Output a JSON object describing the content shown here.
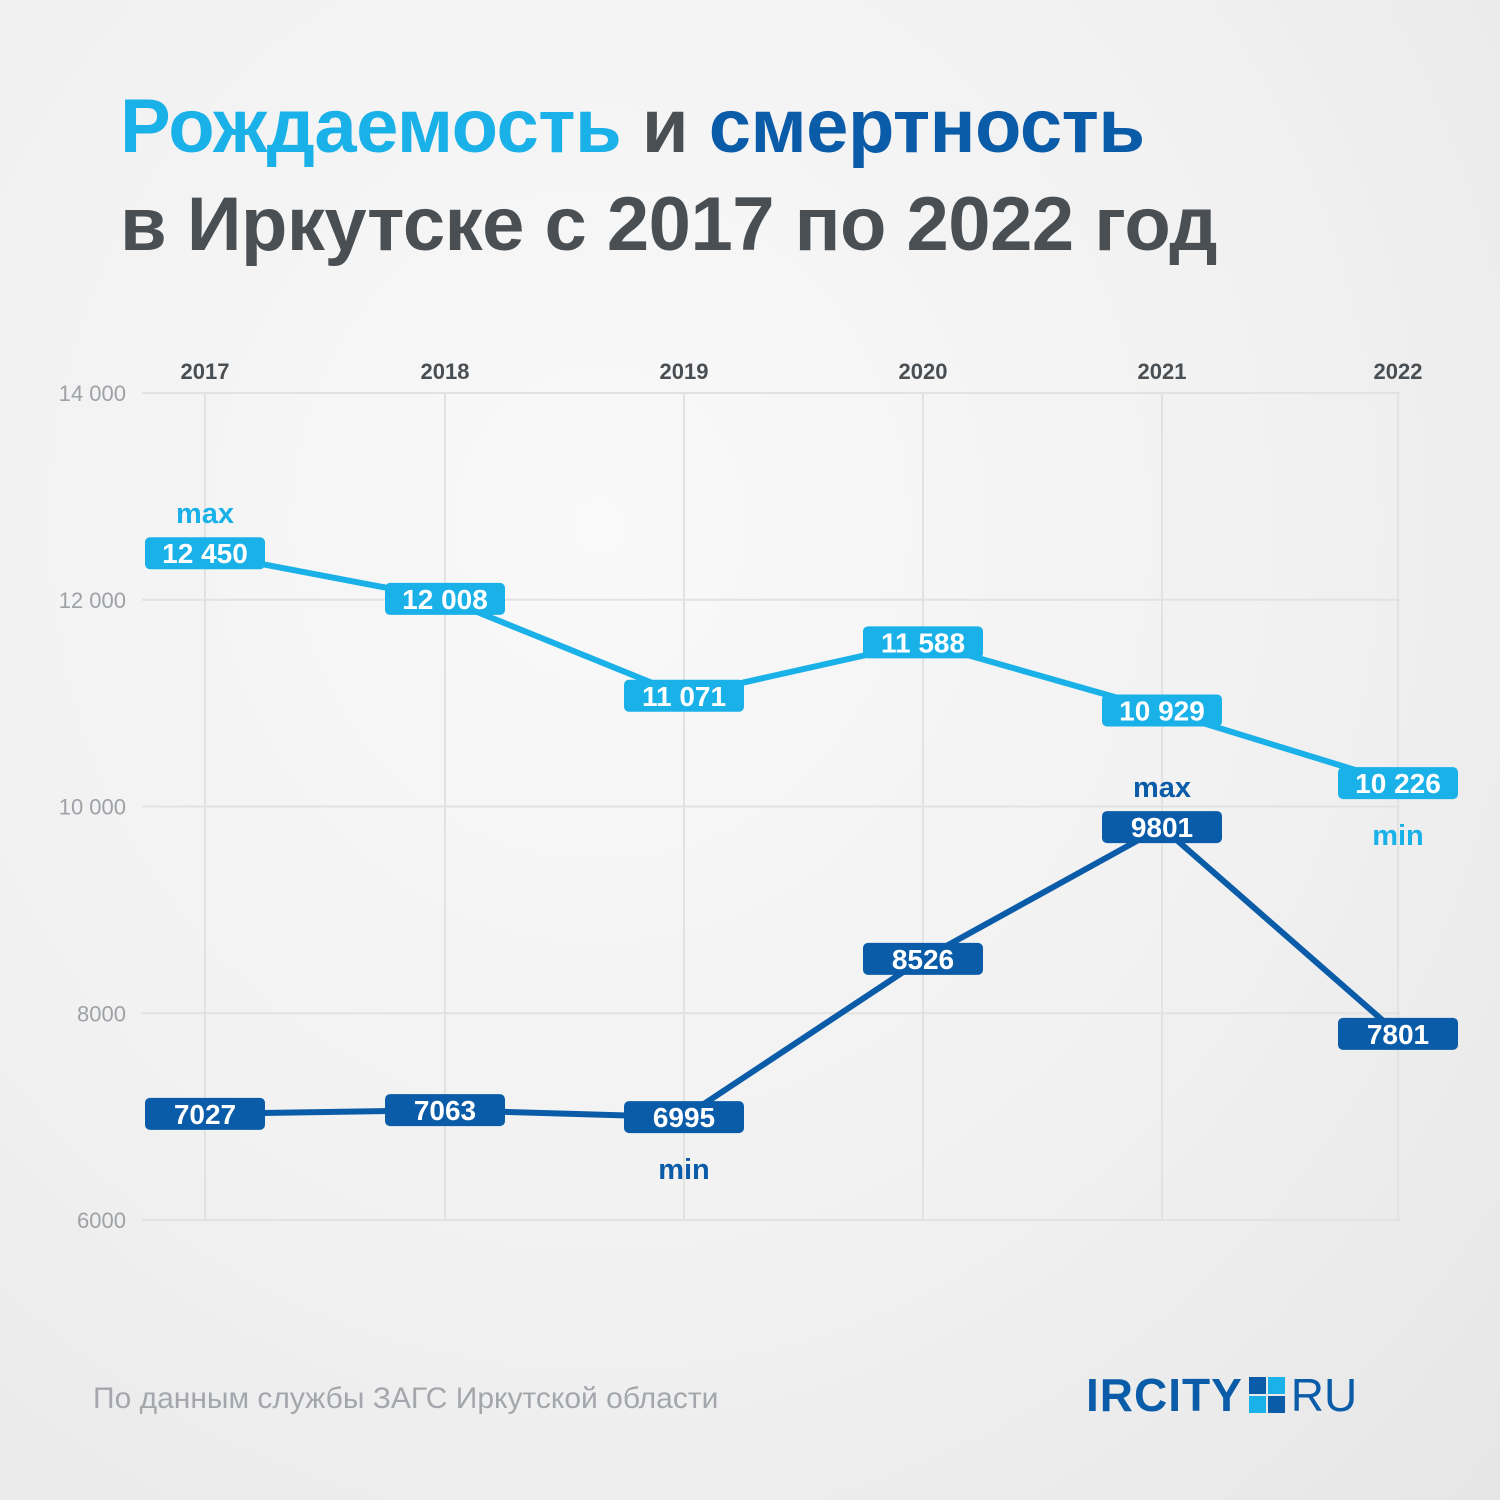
{
  "title": {
    "line1_part1": "Рождаемость",
    "line1_part2": " и ",
    "line1_part3": "смертность",
    "line2": "в Иркутске с 2017 по 2022 год"
  },
  "source": "По данным службы ЗАГС Иркутской области",
  "logo": {
    "left": "IRCITY",
    "right": "RU",
    "colors": [
      "#0b5ca8",
      "#1ab1e8",
      "#1ab1e8",
      "#0b5ca8"
    ]
  },
  "colors": {
    "births": "#1ab1e8",
    "deaths": "#0b5ca8",
    "grid": "#e2e2e2",
    "tick_text": "#9ea2a6",
    "year_text": "#4a4f54"
  },
  "chart_data": {
    "type": "line",
    "title": "Рождаемость и смертность в Иркутске с 2017 по 2022 год",
    "categories": [
      "2017",
      "2018",
      "2019",
      "2020",
      "2021",
      "2022"
    ],
    "y_ticks": [
      "14 000",
      "12 000",
      "10 000",
      "8000",
      "6000"
    ],
    "y_tick_values": [
      14000,
      12000,
      10000,
      8000,
      6000
    ],
    "ylim": [
      6000,
      14000
    ],
    "grid": true,
    "x_axis_position": "top",
    "series": [
      {
        "key": "births",
        "values": [
          12450,
          12008,
          11071,
          11588,
          10929,
          10226
        ],
        "labels": [
          "12 450",
          "12 008",
          "11 071",
          "11 588",
          "10 929",
          "10 226"
        ],
        "annotations": [
          {
            "index": 0,
            "text": "max",
            "placement": "above"
          },
          {
            "index": 5,
            "text": "min",
            "placement": "below"
          }
        ]
      },
      {
        "key": "deaths",
        "values": [
          7027,
          7063,
          6995,
          8526,
          9801,
          7801
        ],
        "labels": [
          "7027",
          "7063",
          "6995",
          "8526",
          "9801",
          "7801"
        ],
        "annotations": [
          {
            "index": 4,
            "text": "max",
            "placement": "above"
          },
          {
            "index": 2,
            "text": "min",
            "placement": "below"
          }
        ]
      }
    ]
  }
}
